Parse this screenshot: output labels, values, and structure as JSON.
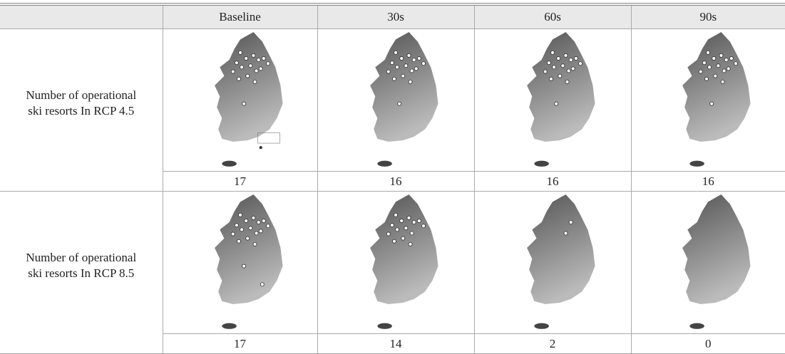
{
  "table": {
    "columns": [
      "Baseline",
      "30s",
      "60s",
      "90s"
    ],
    "rows": [
      {
        "label": "Number of operational ski resorts In RCP 4.5",
        "counts": [
          17,
          16,
          16,
          16
        ]
      },
      {
        "label": "Number of operational ski resorts In RCP 8.5",
        "counts": [
          17,
          14,
          2,
          0
        ]
      }
    ]
  }
}
